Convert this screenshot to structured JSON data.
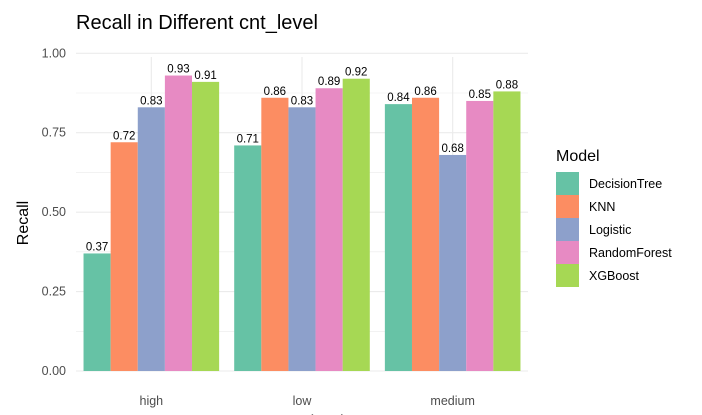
{
  "chart_data": {
    "type": "bar",
    "title": "Recall in Different cnt_level",
    "xlabel": "cnt_level",
    "ylabel": "Recall",
    "categories": [
      "high",
      "low",
      "medium"
    ],
    "ylim": [
      0,
      1.0
    ],
    "yticks": [
      "0.00",
      "0.25",
      "0.50",
      "0.75",
      "1.00"
    ],
    "grid": true,
    "legend_position": "right",
    "legend_title": "Model",
    "series": [
      {
        "name": "DecisionTree",
        "color": "#66c2a5",
        "values": [
          0.37,
          0.71,
          0.84
        ],
        "labels": [
          "0.37",
          "0.71",
          "0.84"
        ]
      },
      {
        "name": "KNN",
        "color": "#fc8d62",
        "values": [
          0.72,
          0.86,
          0.86
        ],
        "labels": [
          "0.72",
          "0.86",
          "0.86"
        ]
      },
      {
        "name": "Logistic",
        "color": "#8da0cb",
        "values": [
          0.83,
          0.83,
          0.68
        ],
        "labels": [
          "0.83",
          "0.83",
          "0.68"
        ]
      },
      {
        "name": "RandomForest",
        "color": "#e78ac3",
        "values": [
          0.93,
          0.89,
          0.85
        ],
        "labels": [
          "0.93",
          "0.89",
          "0.85"
        ]
      },
      {
        "name": "XGBoost",
        "color": "#a6d854",
        "values": [
          0.91,
          0.92,
          0.88
        ],
        "labels": [
          "0.91",
          "0.92",
          "0.88"
        ]
      }
    ]
  }
}
